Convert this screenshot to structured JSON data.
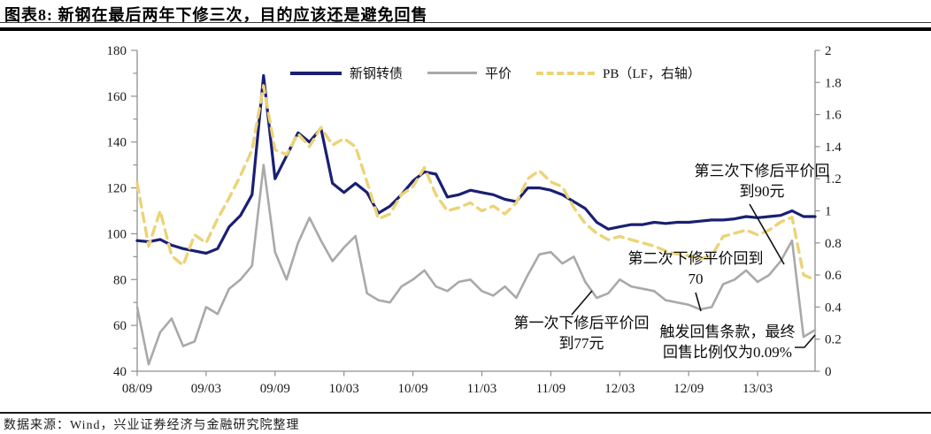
{
  "header": {
    "title": "图表8: 新钢在最后两年下修三次，目的应该还是避免回售"
  },
  "footer": {
    "source": "数据来源：Wind，兴业证券经济与金融研究院整理"
  },
  "colors": {
    "bond": "#1a1f72",
    "parity": "#a9a9a9",
    "pb": "#ecd377",
    "axis": "#8f8f8f",
    "text": "#1a1a1a"
  },
  "legend": [
    {
      "label": "新钢转债",
      "color": "#1a1f72",
      "style": "solid"
    },
    {
      "label": "平价",
      "color": "#a9a9a9",
      "style": "solid"
    },
    {
      "label": "PB（LF，右轴）",
      "color": "#ecd377",
      "style": "dashed"
    }
  ],
  "annotations": [
    {
      "name": "third-revision",
      "line1": "第三次下修后平价回",
      "line2": "到90元",
      "leader": [
        [
          847,
          231
        ],
        [
          886,
          299
        ]
      ]
    },
    {
      "name": "second-revision",
      "line1": "第二次下修平价回到",
      "line2": "70",
      "leader": [
        [
          786,
          331
        ],
        [
          792,
          352
        ]
      ]
    },
    {
      "name": "first-revision",
      "line1": "第一次下修后平价回",
      "line2": "到77元",
      "leader": [
        [
          646,
          356
        ],
        [
          669,
          329
        ]
      ]
    },
    {
      "name": "putback-trigger",
      "line1": "触发回售条款，最终",
      "line2": "回售比例仅为0.09%",
      "leader": [
        [
          898,
          393
        ],
        [
          909,
          393
        ],
        [
          921,
          379
        ]
      ]
    }
  ],
  "chart_data": {
    "type": "line",
    "title": "新钢在最后两年下修三次，目的应该还是避免回售",
    "grid": false,
    "legend_position": "top-center",
    "left_axis": {
      "min": 40,
      "max": 180,
      "tick_step": 20,
      "minor_step": 10,
      "tick_labels": [
        "180",
        "160",
        "140",
        "120",
        "100",
        "80",
        "60",
        "40"
      ]
    },
    "right_axis": {
      "min": 0,
      "max": 2,
      "tick_step": 0.2,
      "tick_labels": [
        "2",
        "1.8",
        "1.6",
        "1.4",
        "1.2",
        "1",
        "0.8",
        "0.6",
        "0.4",
        "0.2",
        "0"
      ]
    },
    "x_ticks": [
      {
        "m": 0,
        "label": "08/09"
      },
      {
        "m": 6,
        "label": "09/03"
      },
      {
        "m": 12,
        "label": "09/09"
      },
      {
        "m": 18,
        "label": "10/03"
      },
      {
        "m": 24,
        "label": "10/09"
      },
      {
        "m": 30,
        "label": "11/03"
      },
      {
        "m": 36,
        "label": "11/09"
      },
      {
        "m": 42,
        "label": "12/03"
      },
      {
        "m": 48,
        "label": "12/09"
      },
      {
        "m": 54,
        "label": "13/03"
      }
    ],
    "months": [
      "2008/09",
      "2008/10",
      "2008/11",
      "2008/12",
      "2009/01",
      "2009/02",
      "2009/03",
      "2009/04",
      "2009/05",
      "2009/06",
      "2009/07",
      "2009/08",
      "2009/09",
      "2009/10",
      "2009/11",
      "2009/12",
      "2010/01",
      "2010/02",
      "2010/03",
      "2010/04",
      "2010/05",
      "2010/06",
      "2010/07",
      "2010/08",
      "2010/09",
      "2010/10",
      "2010/11",
      "2010/12",
      "2011/01",
      "2011/02",
      "2011/03",
      "2011/04",
      "2011/05",
      "2011/06",
      "2011/07",
      "2011/08",
      "2011/09",
      "2011/10",
      "2011/11",
      "2011/12",
      "2012/01",
      "2012/02",
      "2012/03",
      "2012/04",
      "2012/05",
      "2012/06",
      "2012/07",
      "2012/08",
      "2012/09",
      "2012/10",
      "2012/11",
      "2012/12",
      "2013/01",
      "2013/02",
      "2013/03",
      "2013/04",
      "2013/05",
      "2013/06",
      "2013/07",
      "2013/08"
    ],
    "series": [
      {
        "name": "新钢转债",
        "axis": "left",
        "color": "#1a1f72",
        "width": 3.2,
        "dash": null,
        "values": [
          97,
          96.5,
          97.5,
          95,
          93.5,
          92.5,
          91.5,
          93.5,
          103,
          108,
          117,
          169,
          124,
          134,
          144,
          140,
          146,
          122,
          118,
          122,
          118,
          109,
          112,
          117,
          123,
          127,
          126,
          116,
          117,
          119,
          118,
          117,
          115,
          114,
          120,
          120,
          119,
          117,
          114,
          111,
          105,
          102,
          103,
          104,
          104,
          105,
          104.5,
          105,
          105,
          105.5,
          106,
          106,
          106.5,
          107.5,
          107,
          107.5,
          108,
          110,
          107.5,
          107.5
        ]
      },
      {
        "name": "平价",
        "axis": "left",
        "color": "#a9a9a9",
        "width": 2.6,
        "dash": null,
        "values": [
          68,
          43,
          57,
          63,
          51,
          53,
          68,
          65,
          76,
          80,
          86,
          130,
          92,
          80,
          96,
          107,
          97,
          88,
          94,
          99,
          74,
          71,
          70,
          77,
          80,
          84,
          77,
          75,
          79,
          80,
          75,
          73,
          77,
          72,
          82,
          91,
          92,
          87,
          90,
          79,
          72,
          74,
          80,
          77,
          76,
          75,
          71,
          70,
          69,
          67,
          68,
          78,
          80,
          84,
          79,
          82,
          88,
          97,
          55,
          58
        ]
      },
      {
        "name": "PB（LF，右轴）",
        "axis": "right",
        "color": "#ecd377",
        "width": 3.4,
        "dash": [
          10,
          7
        ],
        "values": [
          1.17,
          0.78,
          1.0,
          0.72,
          0.66,
          0.85,
          0.8,
          0.95,
          1.08,
          1.22,
          1.38,
          1.78,
          1.38,
          1.35,
          1.48,
          1.4,
          1.52,
          1.41,
          1.45,
          1.4,
          1.18,
          0.95,
          0.98,
          1.1,
          1.15,
          1.27,
          1.1,
          1.0,
          1.02,
          1.05,
          1.0,
          1.03,
          0.98,
          1.05,
          1.2,
          1.25,
          1.18,
          1.15,
          1.02,
          0.92,
          0.86,
          0.82,
          0.84,
          0.82,
          0.8,
          0.78,
          0.75,
          0.73,
          0.72,
          0.7,
          0.72,
          0.84,
          0.86,
          0.88,
          0.85,
          0.88,
          0.93,
          0.96,
          0.6,
          0.57
        ]
      }
    ]
  }
}
